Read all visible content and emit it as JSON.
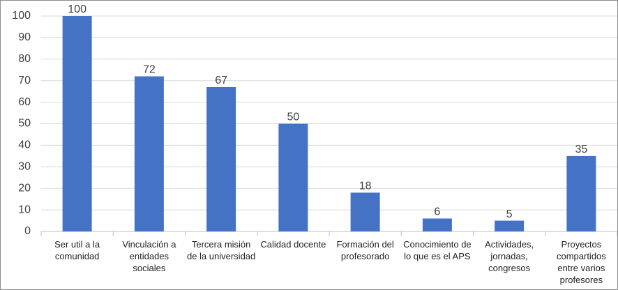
{
  "chart_data": {
    "type": "bar",
    "categories": [
      "Ser util a la comunidad",
      "Vinculación a entidades sociales",
      "Tercera misión de la universidad",
      "Calidad docente",
      "Formación del profesorado",
      "Conocimiento de lo que es el APS",
      "Actividades, jornadas, congresos",
      "Proyectos compartidos entre varios profesores"
    ],
    "values": [
      100,
      72,
      67,
      50,
      18,
      6,
      5,
      35
    ],
    "color": "#4472c4",
    "ylim": [
      0,
      100
    ],
    "yticks": [
      0,
      10,
      20,
      30,
      40,
      50,
      60,
      70,
      80,
      90,
      100
    ],
    "grid": true
  }
}
